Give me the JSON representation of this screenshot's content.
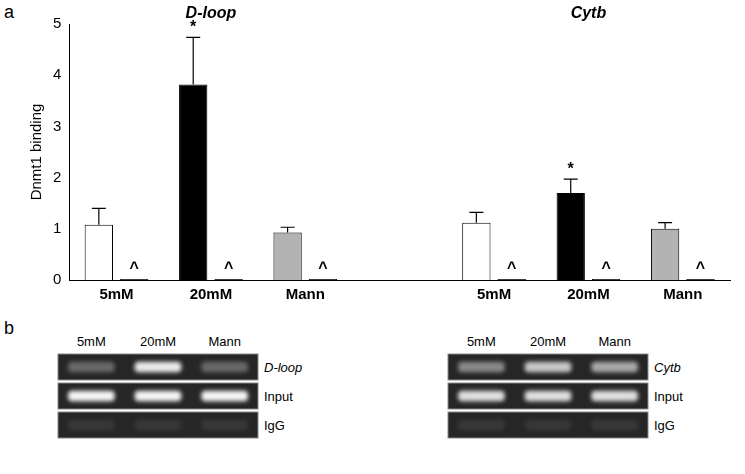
{
  "panel_labels": [
    "a",
    "b"
  ],
  "chart_data": {
    "type": "bar",
    "y_label": "Dnmt1 binding",
    "categories": [
      "5mM",
      "20mM",
      "Mann",
      null,
      "5mM",
      "20mM",
      "Mann"
    ],
    "series": [
      {
        "name": "Dnmt1",
        "colors": [
          "#ffffff",
          "#000000",
          "#b3b3b3",
          null,
          "#ffffff",
          "#000000",
          "#b3b3b3"
        ],
        "values": [
          1.08,
          3.82,
          0.93,
          null,
          1.12,
          1.7,
          1.0
        ],
        "errors": [
          0.32,
          0.92,
          0.1,
          null,
          0.2,
          0.27,
          0.12
        ]
      },
      {
        "name": "IgG",
        "color": "#000000",
        "values": [
          0.02,
          0.02,
          0.02,
          null,
          0.02,
          0.02,
          0.02
        ]
      }
    ],
    "annotations": [
      {
        "text": "D-loop",
        "span": [
          0,
          2
        ]
      },
      {
        "text": "Cytb",
        "span": [
          4,
          6
        ]
      },
      {
        "text": "*",
        "category": 1,
        "series": 0
      },
      {
        "text": "*",
        "category": 5,
        "series": 0
      },
      {
        "text": "^",
        "category": 0,
        "series": 1
      },
      {
        "text": "^",
        "category": 1,
        "series": 1
      },
      {
        "text": "^",
        "category": 2,
        "series": 1
      },
      {
        "text": "^",
        "category": 4,
        "series": 1
      },
      {
        "text": "^",
        "category": 5,
        "series": 1
      },
      {
        "text": "^",
        "category": 6,
        "series": 1
      }
    ],
    "ylim": [
      0,
      5
    ],
    "yticks": [
      0,
      1,
      2,
      3,
      4,
      5
    ],
    "grid": false
  },
  "gels": [
    {
      "lanes": [
        "5mM",
        "20mM",
        "Mann"
      ],
      "rows": [
        {
          "label": "D-loop",
          "italic": true,
          "intensity": [
            0.3,
            0.9,
            0.3
          ]
        },
        {
          "label": "Input",
          "intensity": [
            0.95,
            0.95,
            0.95
          ]
        },
        {
          "label": "IgG",
          "intensity": [
            0.08,
            0.08,
            0.08
          ]
        }
      ]
    },
    {
      "lanes": [
        "5mM",
        "20mM",
        "Mann"
      ],
      "rows": [
        {
          "label": "Cytb",
          "italic": true,
          "intensity": [
            0.45,
            0.75,
            0.6
          ]
        },
        {
          "label": "Input",
          "intensity": [
            0.85,
            0.85,
            0.85
          ]
        },
        {
          "label": "IgG",
          "intensity": [
            0.08,
            0.08,
            0.08
          ]
        }
      ]
    }
  ]
}
